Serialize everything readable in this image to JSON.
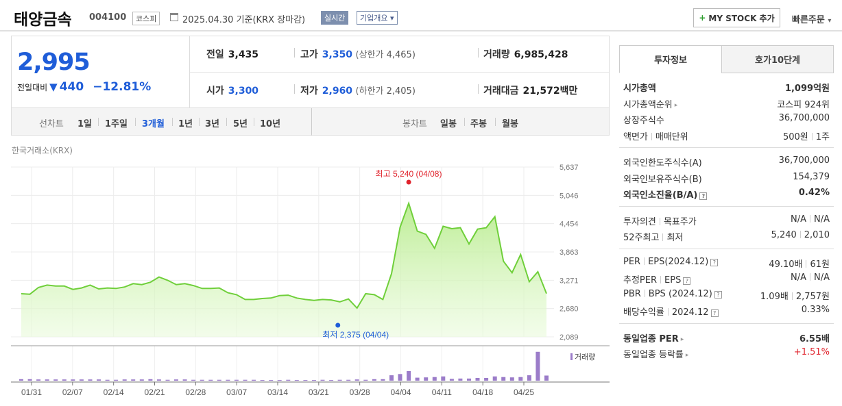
{
  "header": {
    "stock_name": "태양금속",
    "stock_code": "004100",
    "market": "코스피",
    "date_text": "2025.04.30 기준(KRX 장마감)",
    "realtime_label": "실시간",
    "company_label": "기업개요",
    "my_stock_label": "MY STOCK 추가",
    "quick_order_label": "빠른주문"
  },
  "price": {
    "current": "2,995",
    "change_label": "전일대비",
    "change_value": "440",
    "change_pct": "−12.81%"
  },
  "quote": {
    "prev_label": "전일",
    "prev": "3,435",
    "high_label": "고가",
    "high": "3,350",
    "upper_label": "(상한가",
    "upper": "4,465)",
    "volume_label": "거래량",
    "volume": "6,985,428",
    "open_label": "시가",
    "open": "3,300",
    "low_label": "저가",
    "low": "2,960",
    "lower_label": "(하한가",
    "lower": "2,405)",
    "amount_label": "거래대금",
    "amount": "21,572",
    "amount_unit": "백만"
  },
  "periods": {
    "line_label": "선차트",
    "items": [
      "1일",
      "1주일",
      "3개월",
      "1년",
      "3년",
      "5년",
      "10년"
    ],
    "selected": "3개월",
    "candle_label": "봉차트",
    "candle_items": [
      "일봉",
      "주봉",
      "월봉"
    ]
  },
  "chart_source": "한국거래소(KRX)",
  "chart_data": {
    "type": "area",
    "y_ticks": [
      "5,637",
      "5,046",
      "4,454",
      "3,863",
      "3,271",
      "2,680",
      "2,089"
    ],
    "ylim": [
      2089,
      5637
    ],
    "x_ticks": [
      "01/31",
      "02/07",
      "02/14",
      "02/21",
      "02/28",
      "03/07",
      "03/14",
      "03/21",
      "03/28",
      "04/04",
      "04/11",
      "04/18",
      "04/25"
    ],
    "high_annotation": "최고 5,240 (04/08)",
    "low_annotation": "최저 2,375 (04/04)",
    "volume_legend": "거래량",
    "series": [
      {
        "values": [
          2990,
          2980,
          3120,
          3170,
          3150,
          3150,
          3080,
          3110,
          3170,
          3090,
          3110,
          3100,
          3130,
          3200,
          3180,
          3230,
          3340,
          3270,
          3180,
          3200,
          3160,
          3100,
          3100,
          3110,
          3010,
          2970,
          2870,
          2870,
          2890,
          2900,
          2950,
          2960,
          2900,
          2870,
          2850,
          2870,
          2860,
          2820,
          2880,
          2690,
          2990,
          2970,
          2870,
          3410,
          4380,
          4880,
          4300,
          4230,
          3940,
          4400,
          4350,
          4370,
          4030,
          4340,
          4370,
          4600,
          3670,
          3430,
          3810,
          3240,
          3450,
          2995
        ]
      }
    ],
    "volume_series": {
      "values": [
        0.05,
        0.05,
        0.04,
        0.04,
        0.04,
        0.04,
        0.04,
        0.04,
        0.04,
        0.04,
        0.03,
        0.03,
        0.04,
        0.04,
        0.04,
        0.05,
        0.04,
        0.03,
        0.04,
        0.04,
        0.03,
        0.03,
        0.03,
        0.03,
        0.03,
        0.03,
        0.03,
        0.03,
        0.02,
        0.02,
        0.02,
        0.03,
        0.02,
        0.02,
        0.02,
        0.03,
        0.02,
        0.03,
        0.03,
        0.04,
        0.03,
        0.05,
        0.05,
        0.18,
        0.22,
        0.32,
        0.1,
        0.11,
        0.12,
        0.14,
        0.06,
        0.07,
        0.07,
        0.09,
        0.09,
        0.14,
        0.12,
        0.11,
        0.12,
        0.18,
        0.96,
        0.17
      ]
    }
  },
  "right_panel": {
    "tab1": "투자정보",
    "tab2": "호가10단계",
    "s1": [
      {
        "k": "시가총액",
        "v": "1,099억원",
        "bold": true
      },
      {
        "k": "시가총액순위",
        "v": "코스피 924위",
        "caret": true
      },
      {
        "k": "상장주식수",
        "v": "36,700,000"
      },
      {
        "k1": "액면가",
        "k2": "매매단위",
        "v1": "500원",
        "v2": "1주"
      }
    ],
    "s2": [
      {
        "k": "외국인한도주식수(A)",
        "v": "36,700,000"
      },
      {
        "k": "외국인보유주식수(B)",
        "v": "154,379"
      },
      {
        "k": "외국인소진율(B/A)",
        "v": "0.42%",
        "bold": true,
        "q": true
      }
    ],
    "s3": [
      {
        "k1": "투자의견",
        "k2": "목표주가",
        "v1": "N/A",
        "v2": "N/A"
      },
      {
        "k1": "52주최고",
        "k2": "최저",
        "v1": "5,240",
        "v2": "2,010"
      }
    ],
    "s4": [
      {
        "k1": "PER",
        "k2": "EPS(2024.12)",
        "v1": "49.10배",
        "v2": "61원",
        "q": true
      },
      {
        "k1": "추정PER",
        "k2": "EPS",
        "v1": "N/A",
        "v2": "N/A",
        "q": true
      },
      {
        "k1": "PBR",
        "k2": "BPS (2024.12)",
        "v1": "1.09배",
        "v2": "2,757원",
        "q": true
      },
      {
        "k1": "배당수익률",
        "k2": "2024.12",
        "v": "0.33%",
        "q": true
      }
    ],
    "s5": [
      {
        "k": "동일업종 PER",
        "v": "6.55배",
        "bold": true,
        "caret": true
      },
      {
        "k": "동일업종 등락률",
        "v": "+1.51%",
        "red": true,
        "caret": true
      }
    ]
  }
}
